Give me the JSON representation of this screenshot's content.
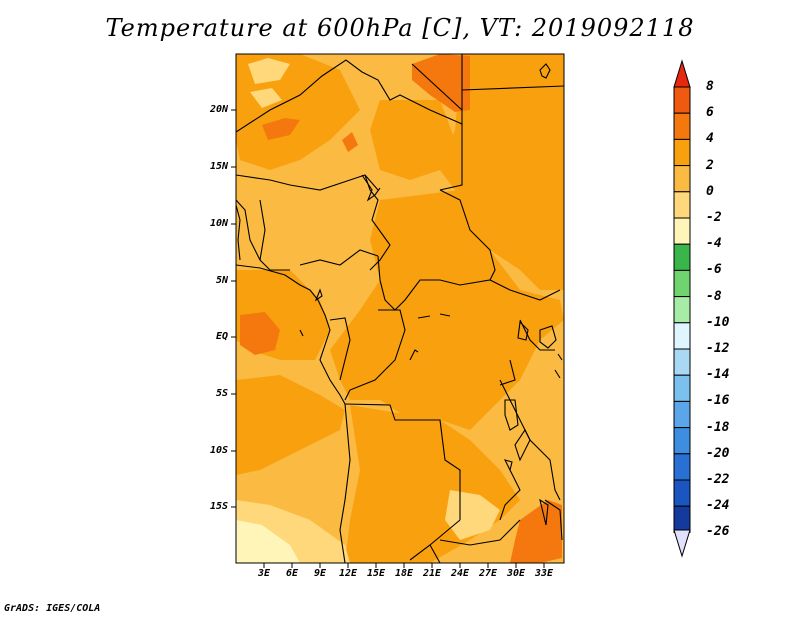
{
  "title": "Temperature at 600hPa [C], VT: 2019092118",
  "credit": "GrADS: IGES/COLA",
  "map": {
    "region": "Central Africa",
    "variable": "Temperature",
    "level": "600hPa",
    "units": "C",
    "valid_time": "2019092118",
    "lat_labels": [
      "20N",
      "15N",
      "10N",
      "5N",
      "EQ",
      "5S",
      "10S",
      "15S"
    ],
    "lon_labels": [
      "3E",
      "6E",
      "9E",
      "12E",
      "15E",
      "18E",
      "21E",
      "24E",
      "27E",
      "30E",
      "33E"
    ]
  },
  "colorbar": {
    "labels": [
      "8",
      "6",
      "4",
      "2",
      "0",
      "-2",
      "-4",
      "-6",
      "-8",
      "-10",
      "-12",
      "-14",
      "-16",
      "-18",
      "-20",
      "-22",
      "-24",
      "-26"
    ],
    "colors": [
      "#e8280e",
      "#f05a10",
      "#f5780f",
      "#f9a00f",
      "#fbbb43",
      "#fed87a",
      "#fff5b8",
      "#39b54a",
      "#6fd36f",
      "#a6eba6",
      "#dff5ff",
      "#a8d8f4",
      "#7cc0ee",
      "#5aa6e8",
      "#3d8de0",
      "#2870d4",
      "#1a55c0",
      "#133a9c",
      "#0c1f70"
    ]
  }
}
